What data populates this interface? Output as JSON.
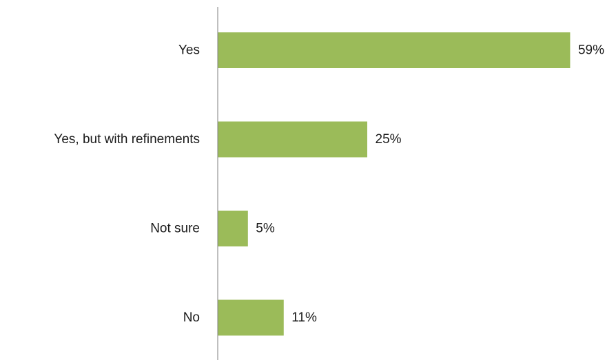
{
  "chart_data": {
    "type": "bar",
    "orientation": "horizontal",
    "categories": [
      "Yes",
      "Yes, but with refinements",
      "Not sure",
      "No"
    ],
    "values": [
      59,
      25,
      5,
      11
    ],
    "value_labels": [
      "59%",
      "25%",
      "5%",
      "11%"
    ],
    "unit": "%",
    "xlim": [
      0,
      60
    ],
    "grid": false,
    "legend": "none",
    "bar_color": "#9BBB59",
    "axis_color": "#7F7F7F",
    "text_color": "#1a1a1a"
  }
}
